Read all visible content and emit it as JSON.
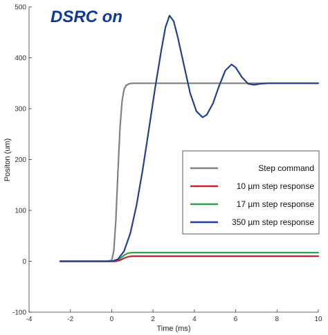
{
  "chart_data": {
    "type": "line",
    "title": "DSRC on",
    "title_color": "#0d3a9a",
    "xlabel": "Time (ms)",
    "ylabel": "Positon (um)",
    "xlim": [
      -4,
      10
    ],
    "ylim": [
      -100,
      500
    ],
    "xticks": [
      -4,
      -2,
      0,
      2,
      4,
      6,
      8,
      10
    ],
    "yticks": [
      -100,
      0,
      100,
      200,
      300,
      400,
      500
    ],
    "grid": false,
    "legend_position": "right",
    "series": [
      {
        "name": "Step command",
        "color": "#7f7f7f",
        "points": [
          [
            -2.5,
            0
          ],
          [
            -0.2,
            0
          ],
          [
            0,
            2
          ],
          [
            0.1,
            20
          ],
          [
            0.2,
            80
          ],
          [
            0.3,
            175
          ],
          [
            0.4,
            262
          ],
          [
            0.5,
            315
          ],
          [
            0.6,
            338
          ],
          [
            0.7,
            346
          ],
          [
            0.85,
            349
          ],
          [
            1.0,
            350
          ],
          [
            2,
            350
          ],
          [
            4,
            350
          ],
          [
            6,
            350
          ],
          [
            8,
            350
          ],
          [
            10,
            350
          ]
        ]
      },
      {
        "name": "10 µm step response",
        "color": "#c0282d",
        "points": [
          [
            -2.5,
            0
          ],
          [
            0.2,
            0
          ],
          [
            0.4,
            2
          ],
          [
            0.6,
            6
          ],
          [
            0.8,
            9
          ],
          [
            1.0,
            10
          ],
          [
            2,
            10
          ],
          [
            4,
            10
          ],
          [
            6,
            10
          ],
          [
            8,
            10
          ],
          [
            10,
            10
          ]
        ]
      },
      {
        "name": "17 µm step response",
        "color": "#2aa34a",
        "points": [
          [
            -2.5,
            0
          ],
          [
            0.2,
            0
          ],
          [
            0.4,
            5
          ],
          [
            0.6,
            12
          ],
          [
            0.8,
            16
          ],
          [
            1.0,
            17
          ],
          [
            2,
            17
          ],
          [
            4,
            17
          ],
          [
            6,
            17
          ],
          [
            8,
            17
          ],
          [
            10,
            17
          ]
        ]
      },
      {
        "name": "350 µm step response",
        "color": "#1f3f8f",
        "points": [
          [
            -2.5,
            0
          ],
          [
            0,
            0
          ],
          [
            0.3,
            4
          ],
          [
            0.6,
            20
          ],
          [
            0.9,
            55
          ],
          [
            1.2,
            110
          ],
          [
            1.5,
            180
          ],
          [
            1.8,
            260
          ],
          [
            2.1,
            340
          ],
          [
            2.4,
            415
          ],
          [
            2.6,
            460
          ],
          [
            2.8,
            483
          ],
          [
            3.0,
            472
          ],
          [
            3.2,
            440
          ],
          [
            3.5,
            385
          ],
          [
            3.8,
            330
          ],
          [
            4.1,
            295
          ],
          [
            4.4,
            283
          ],
          [
            4.6,
            288
          ],
          [
            4.9,
            310
          ],
          [
            5.2,
            345
          ],
          [
            5.5,
            375
          ],
          [
            5.8,
            387
          ],
          [
            6.0,
            381
          ],
          [
            6.3,
            362
          ],
          [
            6.6,
            349
          ],
          [
            6.9,
            347
          ],
          [
            7.2,
            349
          ],
          [
            7.6,
            350
          ],
          [
            8,
            350
          ],
          [
            10,
            350
          ]
        ]
      }
    ]
  }
}
